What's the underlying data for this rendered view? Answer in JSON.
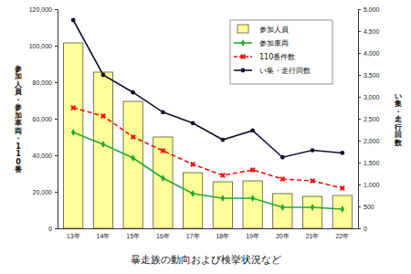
{
  "chart_data": {
    "type": "bar",
    "title": "暴走族の動向および検挙状況など",
    "y_label": "参加人員・参加車両・110番",
    "y2_label": "い集・走行回数",
    "categories": [
      "13年",
      "14年",
      "15年",
      "16年",
      "17年",
      "18年",
      "19年",
      "20年",
      "21年",
      "22年"
    ],
    "series": [
      {
        "name": "参加人員",
        "type": "bar",
        "color": "#ffff99",
        "values": [
          101500,
          85500,
          69500,
          50000,
          30500,
          25500,
          26000,
          19000,
          17500,
          18000
        ]
      },
      {
        "name": "参加車両",
        "type": "line",
        "color": "#22aa33",
        "marker": "diamond",
        "line_style": "solid",
        "values": [
          52500,
          46000,
          38500,
          27500,
          19000,
          16500,
          16500,
          11500,
          11500,
          10500
        ]
      },
      {
        "name": "110番件数",
        "type": "line",
        "color": "#ee1111",
        "marker": "x",
        "line_style": "dashed",
        "values": [
          66000,
          61500,
          50000,
          42500,
          35000,
          29000,
          32000,
          27000,
          26000,
          22000
        ]
      },
      {
        "name": "い集・走行回数",
        "type": "line",
        "color": "#111133",
        "marker": "circle",
        "line_style": "solid",
        "axis": "y2",
        "values": [
          4750,
          3500,
          3100,
          2650,
          2400,
          2020,
          2230,
          1620,
          1780,
          1720
        ]
      }
    ],
    "ylim": [
      0,
      120000
    ],
    "yticks": [
      0,
      {
        "value": 20000,
        "label": "20,000"
      },
      {
        "value": 40000,
        "label": "40,000"
      },
      {
        "value": 60000,
        "label": "60,000"
      },
      {
        "value": 80000,
        "label": "80,000"
      },
      {
        "value": 100000,
        "label": "100,000"
      },
      {
        "value": 120000,
        "label": "120,000"
      }
    ],
    "y2lim": [
      0,
      5000
    ],
    "y2ticks": [
      0,
      500,
      {
        "value": 1000,
        "label": "1,000"
      },
      {
        "value": 1500,
        "label": "1,500"
      },
      {
        "value": 2000,
        "label": "2,000"
      },
      {
        "value": 2500,
        "label": "2,500"
      },
      {
        "value": 3000,
        "label": "3,000"
      },
      {
        "value": 3500,
        "label": "3,500"
      },
      {
        "value": 4000,
        "label": "4,000"
      },
      {
        "value": 4500,
        "label": "4,500"
      },
      {
        "value": 5000,
        "label": "5,000"
      }
    ],
    "legend": "upper right",
    "grid": false
  }
}
